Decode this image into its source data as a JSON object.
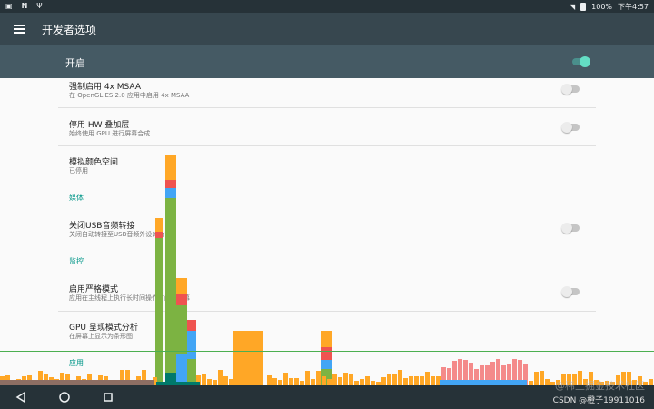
{
  "status": {
    "left_icons": [
      "N",
      "N",
      "Ψ"
    ],
    "battery": "100%",
    "time": "下午4:57"
  },
  "appbar": {
    "title": "开发者选项"
  },
  "master": {
    "label": "开启",
    "enabled": true
  },
  "settings": [
    {
      "title": "强制启用 4x MSAA",
      "summary": "在 OpenGL ES 2.0 应用中启用 4x MSAA",
      "toggle": false
    },
    {
      "title": "停用 HW 叠加层",
      "summary": "始终使用 GPU 进行屏幕合成",
      "toggle": false
    },
    {
      "title": "模拟颜色空间",
      "summary": "已停用"
    },
    {
      "section": "媒体"
    },
    {
      "title": "关闭USB音频转接",
      "summary": "关闭自动转接至USB音频外设的功能",
      "toggle": false
    },
    {
      "section": "监控"
    },
    {
      "title": "启用严格模式",
      "summary": "应用在主线程上执行长时间操作时闪烁屏幕",
      "toggle": false
    },
    {
      "title": "GPU 呈现模式分析",
      "summary": "在屏幕上显示为条形图"
    },
    {
      "section": "应用"
    }
  ],
  "watermark": {
    "line1": "@稀土掘金技术社区",
    "line2": "CSDN @橙子19911016"
  },
  "colors": {
    "statusbar": "#263238",
    "appbar": "#37474f",
    "masterbar": "#455a64",
    "accent": "#009688",
    "bar_green": "#7cb342",
    "bar_orange": "#ffa726",
    "bar_red": "#ef5350",
    "bar_blue": "#42a5f5",
    "bar_teal": "#00796b",
    "bar_salmon": "#f48a8a",
    "bar_line": "#4caf50"
  }
}
